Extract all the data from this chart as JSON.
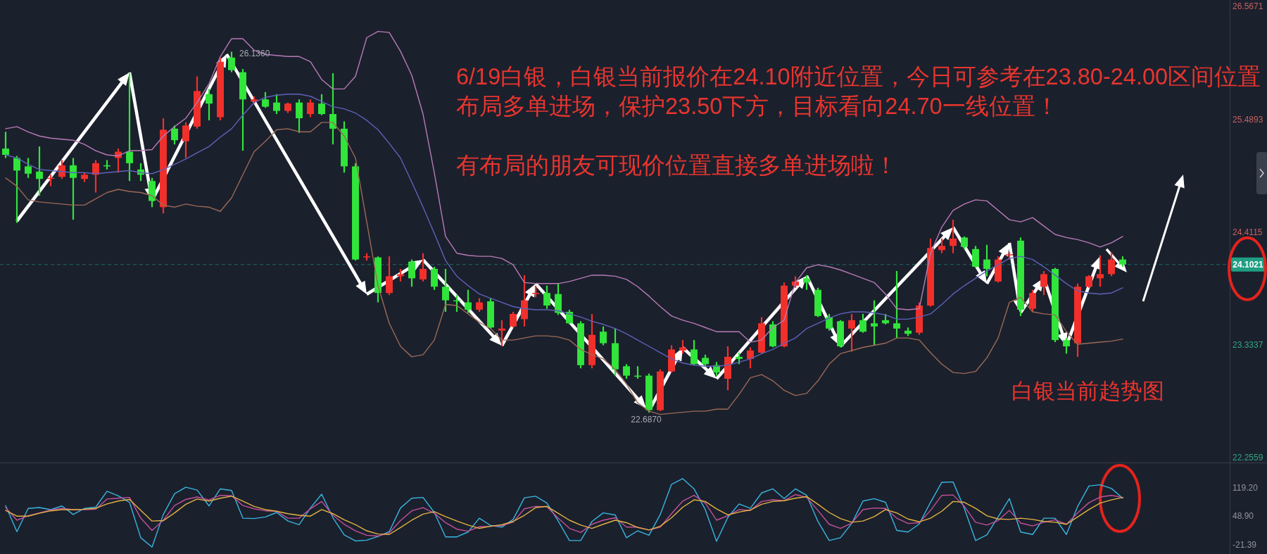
{
  "chart_data": [
    {
      "type": "candlestick",
      "title": "白银当前趋势图",
      "tick_labels": "y",
      "categories": [
        null,
        null,
        null,
        null,
        null,
        null,
        null,
        null,
        null,
        null,
        null,
        null,
        null,
        null,
        null,
        null,
        null,
        null,
        null,
        null,
        null,
        null,
        null,
        null,
        null,
        null,
        null,
        null,
        null,
        null,
        null,
        null,
        null,
        null,
        null,
        null,
        null,
        null,
        null,
        null,
        null,
        null,
        null,
        null,
        null,
        null,
        null,
        null,
        null,
        null,
        null,
        null,
        null,
        null,
        null,
        null,
        null,
        null,
        null,
        null,
        null,
        null,
        null,
        null,
        null,
        null,
        null,
        null,
        null,
        null,
        null,
        null,
        null,
        null,
        null,
        null,
        null,
        null,
        null,
        null,
        null,
        null,
        null,
        null,
        null,
        null,
        null,
        null,
        null,
        null,
        null,
        null,
        null,
        null,
        null,
        null,
        null,
        null,
        null,
        null,
        null,
        null,
        null,
        null,
        null,
        null,
        null,
        null,
        null
      ],
      "ohlc": [
        [
          25.21,
          25.37,
          25.12,
          25.15
        ],
        [
          25.12,
          25.14,
          24.5,
          25.0
        ],
        [
          25.04,
          25.12,
          24.93,
          24.97
        ],
        [
          24.99,
          25.23,
          24.76,
          24.92
        ],
        [
          24.92,
          24.96,
          24.85,
          24.93
        ],
        [
          24.94,
          25.1,
          24.92,
          25.05
        ],
        [
          25.05,
          25.12,
          24.53,
          24.93
        ],
        [
          24.92,
          24.98,
          24.89,
          24.96
        ],
        [
          24.96,
          25.1,
          24.79,
          25.07
        ],
        [
          25.05,
          25.1,
          25.01,
          25.04
        ],
        [
          25.12,
          25.21,
          24.98,
          25.18
        ],
        [
          25.18,
          25.93,
          24.9,
          25.07
        ],
        [
          25.01,
          25.07,
          24.9,
          24.96
        ],
        [
          24.9,
          24.93,
          24.65,
          24.71
        ],
        [
          24.65,
          25.5,
          24.59,
          25.39
        ],
        [
          25.4,
          25.43,
          25.25,
          25.29
        ],
        [
          25.28,
          25.46,
          25.12,
          25.43
        ],
        [
          25.42,
          25.9,
          25.4,
          25.76
        ],
        [
          25.73,
          25.78,
          25.48,
          25.64
        ],
        [
          25.51,
          26.08,
          25.48,
          26.04
        ],
        [
          26.08,
          26.136,
          25.94,
          25.96
        ],
        [
          25.94,
          25.97,
          25.19,
          25.68
        ],
        [
          25.66,
          25.71,
          25.64,
          25.68
        ],
        [
          25.68,
          25.75,
          25.6,
          25.61
        ],
        [
          25.65,
          25.73,
          25.54,
          25.57
        ],
        [
          25.57,
          25.65,
          25.55,
          25.64
        ],
        [
          25.65,
          25.68,
          25.36,
          25.5
        ],
        [
          25.54,
          25.68,
          25.51,
          25.65
        ],
        [
          25.64,
          25.73,
          25.53,
          25.54
        ],
        [
          25.54,
          25.93,
          25.25,
          25.4
        ],
        [
          25.4,
          25.47,
          24.98,
          25.04
        ],
        [
          25.04,
          25.07,
          24.14,
          24.15
        ],
        [
          24.17,
          24.21,
          24.14,
          24.18
        ],
        [
          24.17,
          24.18,
          23.74,
          23.83
        ],
        [
          23.83,
          24.18,
          23.81,
          23.99
        ],
        [
          23.99,
          24.06,
          23.94,
          24.01
        ],
        [
          24.13,
          24.15,
          23.89,
          23.97
        ],
        [
          23.96,
          24.21,
          23.94,
          24.06
        ],
        [
          24.06,
          24.08,
          23.86,
          23.89
        ],
        [
          23.89,
          24.06,
          23.65,
          23.76
        ],
        [
          23.76,
          23.81,
          23.65,
          23.75
        ],
        [
          23.74,
          23.86,
          23.64,
          23.67
        ],
        [
          23.67,
          23.78,
          23.65,
          23.74
        ],
        [
          23.75,
          23.78,
          23.49,
          23.5
        ],
        [
          23.47,
          23.57,
          23.32,
          23.49
        ],
        [
          23.51,
          23.65,
          23.5,
          23.63
        ],
        [
          23.58,
          24.0,
          23.51,
          23.76
        ],
        [
          23.82,
          23.9,
          23.79,
          23.83
        ],
        [
          23.83,
          23.9,
          23.68,
          23.71
        ],
        [
          23.82,
          23.92,
          23.62,
          23.64
        ],
        [
          23.65,
          23.67,
          23.53,
          23.54
        ],
        [
          23.54,
          23.56,
          23.11,
          23.14
        ],
        [
          23.14,
          23.63,
          23.11,
          23.43
        ],
        [
          23.46,
          23.51,
          23.33,
          23.35
        ],
        [
          23.35,
          23.49,
          23.04,
          23.1
        ],
        [
          23.13,
          23.15,
          23.01,
          23.04
        ],
        [
          23.04,
          23.13,
          23.01,
          23.03
        ],
        [
          23.04,
          23.06,
          22.687,
          22.71
        ],
        [
          22.71,
          23.1,
          22.7,
          23.08
        ],
        [
          23.08,
          23.33,
          23.07,
          23.29
        ],
        [
          23.28,
          23.38,
          23.25,
          23.31
        ],
        [
          23.29,
          23.38,
          23.14,
          23.15
        ],
        [
          23.21,
          23.24,
          23.13,
          23.15
        ],
        [
          23.14,
          23.17,
          23.04,
          23.07
        ],
        [
          23.01,
          23.32,
          22.9,
          23.22
        ],
        [
          23.22,
          23.26,
          23.15,
          23.2
        ],
        [
          23.2,
          23.31,
          23.11,
          23.28
        ],
        [
          23.26,
          23.6,
          23.25,
          23.54
        ],
        [
          23.53,
          23.56,
          23.31,
          23.32
        ],
        [
          23.32,
          23.93,
          23.31,
          23.9
        ],
        [
          23.9,
          23.99,
          23.88,
          23.94
        ],
        [
          23.97,
          24.0,
          23.86,
          23.93
        ],
        [
          23.86,
          23.88,
          23.6,
          23.61
        ],
        [
          23.6,
          23.63,
          23.47,
          23.49
        ],
        [
          23.56,
          23.57,
          23.31,
          23.32
        ],
        [
          23.49,
          23.63,
          23.27,
          23.57
        ],
        [
          23.57,
          23.63,
          23.45,
          23.46
        ],
        [
          23.54,
          23.76,
          23.33,
          23.51
        ],
        [
          23.57,
          23.63,
          23.53,
          23.54
        ],
        [
          23.54,
          24.04,
          23.4,
          23.49
        ],
        [
          23.47,
          23.5,
          23.42,
          23.44
        ],
        [
          23.45,
          23.74,
          23.43,
          23.71
        ],
        [
          23.71,
          24.35,
          23.7,
          24.26
        ],
        [
          24.24,
          24.35,
          24.21,
          24.28
        ],
        [
          24.28,
          24.53,
          24.21,
          24.35
        ],
        [
          24.36,
          24.37,
          24.25,
          24.27
        ],
        [
          24.25,
          24.28,
          24.07,
          24.08
        ],
        [
          24.15,
          24.29,
          23.99,
          24.06
        ],
        [
          23.94,
          24.18,
          23.93,
          24.15
        ],
        [
          24.19,
          24.22,
          24.15,
          24.2
        ],
        [
          24.33,
          24.36,
          23.61,
          23.67
        ],
        [
          23.68,
          23.86,
          23.65,
          23.83
        ],
        [
          23.89,
          24.04,
          23.81,
          24.01
        ],
        [
          24.06,
          24.07,
          23.36,
          23.38
        ],
        [
          23.38,
          23.4,
          23.25,
          23.32
        ],
        [
          23.35,
          23.92,
          23.22,
          23.89
        ],
        [
          23.89,
          24.0,
          23.88,
          23.99
        ],
        [
          23.97,
          24.19,
          23.89,
          24.01
        ],
        [
          24.01,
          24.22,
          23.99,
          24.15
        ],
        [
          24.15,
          24.18,
          24.08,
          24.1021
        ],
        null,
        null,
        null,
        null,
        null,
        null,
        null,
        null,
        null
      ],
      "series": [
        {
          "type": "line",
          "color": "#b77bb5",
          "values": [
            25.4,
            25.42,
            25.37,
            25.33,
            25.31,
            25.3,
            25.29,
            25.25,
            25.19,
            25.15,
            25.14,
            25.19,
            25.19,
            25.2,
            25.33,
            25.42,
            25.5,
            25.65,
            25.83,
            26.09,
            26.26,
            26.26,
            26.15,
            26.11,
            26.1,
            26.09,
            26.09,
            26.04,
            25.87,
            25.78,
            25.78,
            25.9,
            26.27,
            26.33,
            26.32,
            26.14,
            25.91,
            25.54,
            24.98,
            24.37,
            24.21,
            24.19,
            24.18,
            24.18,
            24.16,
            24.1,
            23.93,
            23.92,
            23.92,
            23.92,
            23.94,
            23.97,
            24.0,
            24.0,
            23.99,
            23.96,
            23.89,
            23.8,
            23.7,
            23.61,
            23.57,
            23.54,
            23.5,
            23.46,
            23.46,
            23.46,
            23.36,
            23.38,
            23.5,
            23.57,
            23.93,
            24.07,
            24.1,
            24.08,
            24.05,
            24.01,
            23.97,
            23.93,
            23.82,
            23.68,
            23.67,
            23.68,
            24.21,
            24.46,
            24.62,
            24.68,
            24.72,
            24.71,
            24.62,
            24.53,
            24.51,
            24.55,
            24.47,
            24.39,
            24.36,
            24.34,
            24.31,
            24.27,
            24.31,
            24.37,
            null,
            null,
            null,
            null,
            null,
            null,
            null,
            null,
            null
          ]
        },
        {
          "type": "line",
          "color": "#5b63b8",
          "values": [
            25.15,
            25.12,
            25.06,
            25.01,
            25.0,
            24.99,
            24.98,
            24.98,
            24.97,
            24.98,
            24.99,
            25.0,
            24.98,
            24.97,
            25.01,
            25.06,
            25.11,
            25.17,
            25.23,
            25.32,
            25.4,
            25.53,
            25.65,
            25.7,
            25.72,
            25.73,
            25.73,
            25.71,
            25.66,
            25.61,
            25.59,
            25.55,
            25.48,
            25.39,
            25.26,
            25.12,
            24.89,
            24.65,
            24.4,
            24.14,
            23.99,
            23.9,
            23.82,
            23.78,
            23.74,
            23.7,
            23.68,
            23.67,
            23.67,
            23.66,
            23.63,
            23.6,
            23.56,
            23.53,
            23.49,
            23.44,
            23.38,
            23.32,
            23.26,
            23.2,
            23.16,
            23.14,
            23.13,
            23.13,
            23.14,
            23.17,
            23.2,
            23.25,
            23.29,
            23.35,
            23.4,
            23.49,
            23.54,
            23.59,
            23.63,
            23.65,
            23.65,
            23.64,
            23.62,
            23.58,
            23.58,
            23.6,
            23.63,
            23.72,
            23.82,
            23.9,
            23.97,
            24.04,
            24.1,
            24.16,
            24.18,
            24.15,
            24.08,
            24.0,
            23.92,
            23.85,
            23.83,
            23.82,
            23.83,
            23.88,
            null,
            null,
            null,
            null,
            null,
            null,
            null,
            null,
            null
          ]
        },
        {
          "type": "line",
          "color": "#9b6a55",
          "values": [
            24.93,
            24.85,
            24.72,
            24.7,
            24.69,
            24.68,
            24.67,
            24.67,
            24.73,
            24.79,
            24.82,
            24.8,
            24.79,
            24.76,
            24.67,
            24.65,
            24.68,
            24.66,
            24.65,
            24.61,
            24.74,
            24.96,
            25.18,
            25.28,
            25.39,
            25.4,
            25.37,
            25.37,
            25.46,
            25.46,
            25.33,
            25.12,
            24.51,
            23.9,
            23.54,
            23.32,
            23.22,
            23.24,
            23.38,
            23.72,
            23.71,
            23.63,
            23.55,
            23.49,
            23.38,
            23.38,
            23.4,
            23.42,
            23.42,
            23.41,
            23.38,
            23.29,
            23.24,
            23.2,
            23.1,
            22.96,
            22.78,
            22.7,
            22.67,
            22.68,
            22.69,
            22.7,
            22.7,
            22.72,
            22.72,
            22.86,
            23.02,
            23.05,
            22.99,
            22.9,
            22.85,
            22.87,
            22.99,
            23.15,
            23.25,
            23.28,
            23.31,
            23.33,
            23.35,
            23.4,
            23.4,
            23.38,
            23.26,
            23.15,
            23.07,
            23.06,
            23.08,
            23.21,
            23.4,
            23.74,
            23.79,
            23.65,
            23.63,
            23.62,
            23.46,
            23.34,
            23.35,
            23.36,
            23.37,
            23.39,
            null,
            null,
            null,
            null,
            null,
            null,
            null,
            null,
            null
          ]
        }
      ],
      "ylim": [
        22.21,
        26.63
      ],
      "yticks": [
        22.2559,
        23.3337,
        24.4115,
        25.4893,
        26.5671
      ],
      "ref_lines": [
        {
          "axis": "y",
          "value": 24.1021,
          "label": "24.1021",
          "color": "#1f9e83",
          "line_style": "dashed"
        }
      ],
      "annotations": [
        {
          "text": "26.1360",
          "y": 26.136
        },
        {
          "text": "22.6870",
          "y": 22.687
        },
        "6/19白银，白银当前报价在24.10附近位置，今日可参考在23.80-24.00区间位置布局多单进场，保护23.50下方，目标看向24.70一线位置！",
        "有布局的朋友可现价位置直接多单进场啦！"
      ]
    },
    {
      "type": "line",
      "tick_labels": "y",
      "categories": [
        null,
        null,
        null,
        null,
        null,
        null,
        null,
        null,
        null,
        null,
        null,
        null,
        null,
        null,
        null,
        null,
        null,
        null,
        null,
        null,
        null,
        null,
        null,
        null,
        null,
        null,
        null,
        null,
        null,
        null,
        null,
        null,
        null,
        null,
        null,
        null,
        null,
        null,
        null,
        null,
        null,
        null,
        null,
        null,
        null,
        null,
        null,
        null,
        null,
        null,
        null,
        null,
        null,
        null,
        null,
        null,
        null,
        null,
        null,
        null,
        null,
        null,
        null,
        null,
        null,
        null,
        null,
        null,
        null,
        null,
        null,
        null,
        null,
        null,
        null,
        null,
        null,
        null,
        null,
        null,
        null,
        null,
        null,
        null,
        null,
        null,
        null,
        null,
        null,
        null,
        null,
        null,
        null,
        null,
        null,
        null,
        null,
        null,
        null,
        null,
        null,
        null,
        null,
        null,
        null,
        null,
        null,
        null,
        null
      ],
      "series": [
        {
          "color": "#38b6e0",
          "values": [
            75,
            11,
            68,
            70,
            65,
            74,
            53,
            68,
            71,
            110,
            99,
            83,
            -4,
            -27,
            53,
            104,
            120,
            113,
            74,
            116,
            112,
            44,
            43,
            47,
            58,
            37,
            28,
            69,
            103,
            45,
            3,
            -12,
            -10,
            -1,
            11,
            69,
            93,
            95,
            58,
            -2,
            -2,
            10,
            44,
            26,
            22,
            41,
            94,
            98,
            81,
            37,
            -11,
            -11,
            36,
            57,
            52,
            -4,
            13,
            2,
            53,
            127,
            141,
            116,
            65,
            -13,
            46,
            79,
            68,
            106,
            116,
            92,
            116,
            100,
            36,
            -11,
            -4,
            31,
            86,
            92,
            83,
            14,
            10,
            30,
            83,
            132,
            133,
            68,
            -11,
            3,
            47,
            92,
            10,
            4,
            44,
            44,
            4,
            73,
            123,
            126,
            117,
            93,
            null,
            null,
            null,
            null,
            null,
            null,
            null,
            null,
            null
          ]
        },
        {
          "color": "#c4509c",
          "values": [
            70,
            39,
            50,
            57,
            64,
            68,
            65,
            65,
            66,
            91,
            93,
            95,
            44,
            14,
            39,
            75,
            90,
            96,
            89,
            100,
            99,
            75,
            67,
            62,
            61,
            44,
            44,
            67,
            85,
            51,
            29,
            13,
            2,
            0,
            8,
            38,
            62,
            70,
            56,
            33,
            17,
            12,
            23,
            24,
            26,
            34,
            67,
            73,
            72,
            44,
            19,
            9,
            29,
            39,
            45,
            22,
            22,
            15,
            22,
            55,
            86,
            100,
            81,
            39,
            50,
            65,
            63,
            85,
            89,
            87,
            102,
            95,
            63,
            29,
            19,
            32,
            65,
            69,
            68,
            44,
            31,
            33,
            63,
            100,
            101,
            73,
            34,
            27,
            38,
            63,
            32,
            25,
            34,
            40,
            29,
            57,
            82,
            96,
            100,
            95,
            null,
            null,
            null,
            null,
            null,
            null,
            null,
            null,
            null
          ]
        },
        {
          "color": "#e3b341",
          "values": [
            63,
            49,
            49,
            56,
            62,
            65,
            65,
            66,
            68,
            79,
            86,
            90,
            63,
            37,
            38,
            57,
            78,
            91,
            86,
            93,
            98,
            86,
            73,
            65,
            61,
            55,
            51,
            49,
            65,
            55,
            40,
            28,
            13,
            5,
            4,
            21,
            39,
            54,
            60,
            48,
            37,
            27,
            19,
            24,
            28,
            36,
            51,
            70,
            73,
            56,
            39,
            27,
            19,
            29,
            39,
            33,
            21,
            15,
            24,
            45,
            71,
            89,
            85,
            67,
            52,
            59,
            64,
            78,
            85,
            87,
            93,
            97,
            78,
            58,
            43,
            34,
            37,
            48,
            65,
            57,
            42,
            35,
            44,
            61,
            85,
            83,
            68,
            50,
            42,
            41,
            44,
            41,
            36,
            34,
            29,
            47,
            65,
            81,
            89,
            95,
            null,
            null,
            null,
            null,
            null,
            null,
            null,
            null,
            null
          ]
        }
      ],
      "ylim": [
        -44,
        179
      ],
      "yticks": [
        {
          "value": 119.2,
          "label": "119.20"
        },
        {
          "value": 48.9,
          "label": "48.90"
        },
        -21.39
      ]
    }
  ]
}
